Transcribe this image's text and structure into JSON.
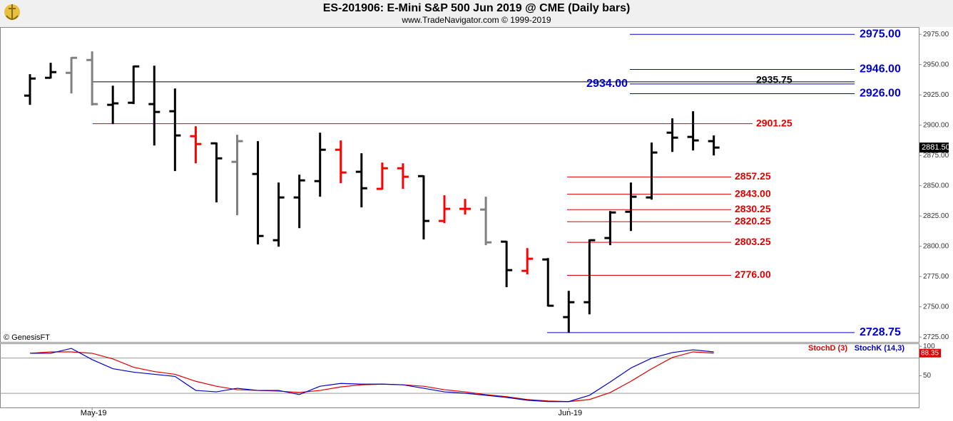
{
  "chart_data": [
    {
      "type": "ohlc",
      "title": "ES-201906:  E-Mini S&P 500 Jun 2019 @ CME  (Daily bars)",
      "subtitle": "www.TradeNavigator.com © 1999-2019",
      "source_note": "© GenesisFT",
      "categories": [
        null,
        null,
        null,
        "May-19",
        null,
        null,
        null,
        null,
        null,
        null,
        null,
        null,
        null,
        null,
        null,
        null,
        null,
        null,
        null,
        null,
        null,
        null,
        null,
        null,
        null,
        null,
        "Jun-19",
        null,
        null,
        null,
        null,
        null,
        null,
        null
      ],
      "open": [
        2924.4,
        2939.1,
        2943.2,
        2953.8,
        2916.8,
        2918.5,
        2917.4,
        2911.5,
        2890.9,
        2885.0,
        2869.7,
        2859.7,
        2805.0,
        2840.3,
        2853.8,
        2879.7,
        2861.5,
        2847.4,
        2864.4,
        2857.9,
        2820.9,
        2830.9,
        2830.3,
        2803.8,
        2779.7,
        2789.1,
        2741.5,
        2753.8,
        2806.8,
        2828.5,
        2840.3,
        2893.8,
        2890.3,
        2886.8
      ],
      "high": [
        2942.1,
        2951.5,
        2956.2,
        2960.9,
        2932.6,
        2949.1,
        2949.1,
        2930.3,
        2899.1,
        2885.6,
        2892.1,
        2886.8,
        2852.6,
        2859.1,
        2893.8,
        2887.4,
        2876.8,
        2869.1,
        2868.5,
        2858.5,
        2842.1,
        2839.1,
        2840.9,
        2804.4,
        2798.5,
        2790.3,
        2763.2,
        2805.6,
        2829.1,
        2852.6,
        2885.6,
        2905.6,
        2911.5,
        2891.5
      ],
      "low": [
        2916.8,
        2938.5,
        2926.2,
        2916.2,
        2900.9,
        2917.4,
        2883.2,
        2862.1,
        2868.5,
        2836.2,
        2825.6,
        2801.5,
        2799.7,
        2815.0,
        2840.9,
        2852.1,
        2832.1,
        2846.8,
        2847.4,
        2805.6,
        2819.1,
        2826.2,
        2800.9,
        2766.2,
        2776.8,
        2750.3,
        2728.5,
        2743.8,
        2800.9,
        2812.6,
        2838.5,
        2877.9,
        2879.1,
        2875.0
      ],
      "close": [
        2938.5,
        2943.8,
        2955.6,
        2917.4,
        2918.0,
        2948.5,
        2910.9,
        2891.5,
        2884.4,
        2872.6,
        2886.8,
        2808.5,
        2840.3,
        2854.4,
        2879.7,
        2860.9,
        2847.9,
        2864.4,
        2857.4,
        2820.9,
        2830.9,
        2830.9,
        2803.2,
        2780.3,
        2789.7,
        2750.9,
        2753.8,
        2805.0,
        2827.9,
        2840.9,
        2877.4,
        2889.7,
        2887.4,
        2881.5
      ],
      "close_last_label": "2881.50",
      "colors": [
        "#000000",
        "#000000",
        "#808080",
        "#808080",
        "#000000",
        "#000000",
        "#000000",
        "#000000",
        "#ff0000",
        "#000000",
        "#808080",
        "#000000",
        "#000000",
        "#000000",
        "#000000",
        "#ff0000",
        "#000000",
        "#ff0000",
        "#ff0000",
        "#000000",
        "#ff0000",
        "#ff0000",
        "#808080",
        "#000000",
        "#ff0000",
        "#000000",
        "#000000",
        "#000000",
        "#000000",
        "#000000",
        "#000000",
        "#000000",
        "#000000",
        "#000000"
      ],
      "ylim": [
        2721,
        2981
      ],
      "yticks": [
        {
          "value": 2725,
          "label": "2725.00"
        },
        {
          "value": 2750,
          "label": "2750.00"
        },
        {
          "value": 2775,
          "label": "2775.00"
        },
        {
          "value": 2800,
          "label": "2800.00"
        },
        {
          "value": 2825,
          "label": "2825.00"
        },
        {
          "value": 2850,
          "label": "2850.00"
        },
        {
          "value": 2875,
          "label": "2875.00"
        },
        {
          "value": 2900,
          "label": "2900.00"
        },
        {
          "value": 2925,
          "label": "2925.00"
        },
        {
          "value": 2950,
          "label": "2950.00"
        },
        {
          "value": 2975,
          "label": "2975.00"
        }
      ],
      "levels": [
        {
          "value": 2975,
          "label": "2975.00",
          "color": "#0000cc"
        },
        {
          "value": 2946,
          "label": "2946.00",
          "color": "#0000cc"
        },
        {
          "value": 2935.75,
          "label": "2935.75",
          "color": "#000000"
        },
        {
          "value": 2934,
          "label": "2934.00",
          "color": "#0000cc"
        },
        {
          "value": 2926,
          "label": "2926.00",
          "color": "#0000cc"
        },
        {
          "value": 2901.25,
          "label": "2901.25",
          "color": "#e00000"
        },
        {
          "value": 2857.25,
          "label": "2857.25",
          "color": "#e00000"
        },
        {
          "value": 2843,
          "label": "2843.00",
          "color": "#e00000"
        },
        {
          "value": 2830.25,
          "label": "2830.25",
          "color": "#e00000"
        },
        {
          "value": 2820.25,
          "label": "2820.25",
          "color": "#e00000"
        },
        {
          "value": 2803.25,
          "label": "2803.25",
          "color": "#e00000"
        },
        {
          "value": 2776,
          "label": "2776.00",
          "color": "#e00000"
        },
        {
          "value": 2728.75,
          "label": "2728.75",
          "color": "#0000cc"
        }
      ]
    },
    {
      "type": "line",
      "series": [
        {
          "name": "StochD (3)",
          "color": "#e00000",
          "values": [
            88.1,
            90.5,
            90.5,
            88.1,
            78.6,
            64.3,
            57.1,
            52.4,
            40.5,
            32.1,
            26.2,
            25.0,
            23.8,
            21.4,
            25.0,
            31.0,
            34.5,
            35.7,
            34.5,
            32.1,
            26.2,
            22.6,
            17.9,
            14.3,
            9.5,
            7.1,
            6.0,
            9.5,
            21.4,
            40.5,
            61.9,
            81.0,
            90.5,
            88.35
          ]
        },
        {
          "name": "StochK (14,3)",
          "color": "#0000cc",
          "values": [
            88.1,
            88.1,
            96.4,
            77.4,
            61.9,
            56.0,
            52.4,
            48.8,
            25.0,
            22.6,
            28.6,
            25.0,
            25.0,
            17.9,
            32.1,
            36.9,
            35.7,
            35.7,
            34.5,
            28.6,
            22.6,
            20.2,
            16.7,
            13.1,
            8.3,
            6.0,
            6.0,
            16.7,
            39.3,
            63.1,
            79.8,
            89.3,
            94.0,
            90.5
          ]
        }
      ],
      "ylim": [
        -4,
        105
      ],
      "yticks": [
        50,
        100
      ],
      "levels": [
        20,
        80
      ]
    }
  ]
}
